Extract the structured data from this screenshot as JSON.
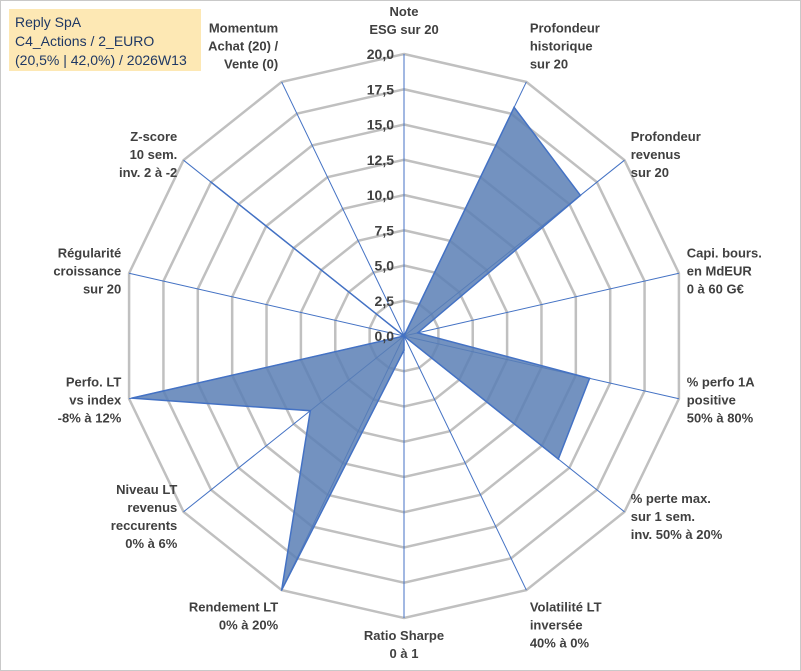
{
  "info": {
    "line1": "Reply SpA",
    "line2": "C4_Actions / 2_EURO",
    "line3": "(20,5% | 42,0%) / 2026W13"
  },
  "colors": {
    "fill": "#5b7fb5",
    "line": "#4472c4",
    "grid": "#c0c0c0",
    "info_bg": "#fde8b4",
    "info_text": "#1f3864"
  },
  "chart_data": {
    "type": "radar",
    "rmin": 0,
    "rmax": 20,
    "step": 2.5,
    "tick_labels": [
      "0,0",
      "2,5",
      "5,0",
      "7,5",
      "10,0",
      "12,5",
      "15,0",
      "17,5",
      "20,0"
    ],
    "axes": [
      {
        "label": [
          "Note",
          "ESG sur 20"
        ],
        "value": 0
      },
      {
        "label": [
          "Profondeur",
          "historique",
          "sur 20"
        ],
        "value": 18
      },
      {
        "label": [
          "Profondeur",
          "revenus",
          "sur 20"
        ],
        "value": 16
      },
      {
        "label": [
          "Capi. bours.",
          "en MdEUR",
          "0 à 60 G€"
        ],
        "value": 1
      },
      {
        "label": [
          "% perfo 1A",
          "positive",
          "50% à 80%"
        ],
        "value": 13.5
      },
      {
        "label": [
          "% perte max.",
          "sur 1 sem.",
          "inv. 50% à 20%"
        ],
        "value": 14
      },
      {
        "label": [
          "Volatilité LT",
          "inversée",
          "40% à 0%"
        ],
        "value": 0
      },
      {
        "label": [
          "Ratio Sharpe",
          "0 à 1"
        ],
        "value": 1
      },
      {
        "label": [
          "Rendement LT",
          "0% à 20%"
        ],
        "value": 20
      },
      {
        "label": [
          "Niveau LT",
          "revenus",
          "reccurents",
          "0% à 6%"
        ],
        "value": 8.5
      },
      {
        "label": [
          "Perfo. LT",
          "vs index",
          "-8% à 12%"
        ],
        "value": 19.8
      },
      {
        "label": [
          "Régularité",
          "croissance",
          "sur 20"
        ],
        "value": 0
      },
      {
        "label": [
          "Z-score",
          "10 sem.",
          "inv. 2 à -2"
        ],
        "value": 17.5
      },
      {
        "label": [
          "Momentum",
          "Achat (20) /",
          "Vente (0)"
        ],
        "value": 0
      }
    ]
  }
}
